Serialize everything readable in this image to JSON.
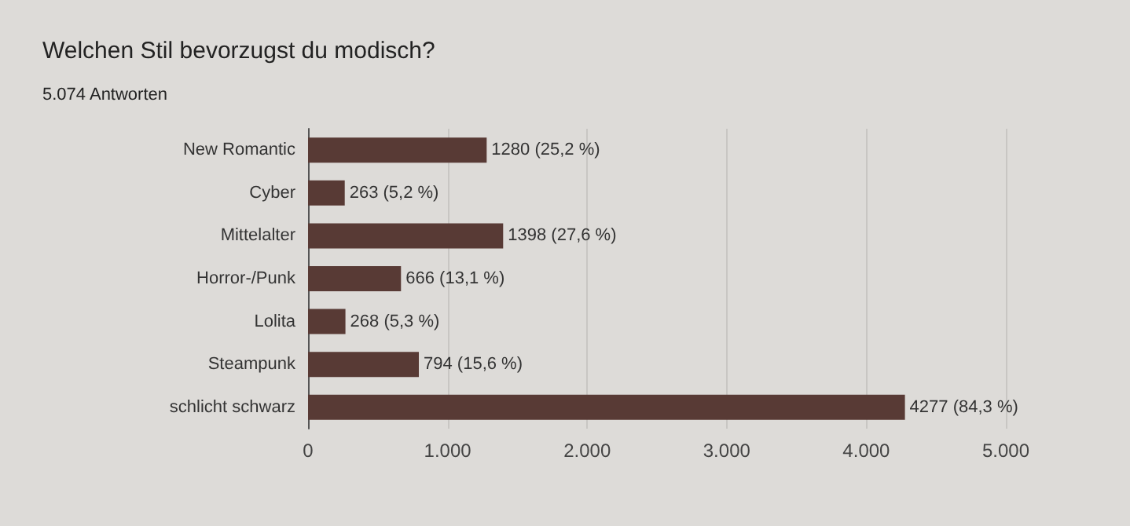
{
  "chart_data": {
    "type": "bar",
    "orientation": "horizontal",
    "title": "Welchen Stil bevorzugst du modisch?",
    "subtitle": "5.074 Antworten",
    "categories": [
      "New Romantic",
      "Cyber",
      "Mittelalter",
      "Horror-/Punk",
      "Lolita",
      "Steampunk",
      "schlicht schwarz"
    ],
    "values": [
      1280,
      263,
      1398,
      666,
      268,
      794,
      4277
    ],
    "value_labels": [
      "1280 (25,2 %)",
      "263 (5,2 %)",
      "1398 (27,6 %)",
      "666 (13,1 %)",
      "268 (5,3 %)",
      "794 (15,6 %)",
      "4277 (84,3 %)"
    ],
    "color": "#583a35",
    "xlim": [
      0,
      5000
    ],
    "xticks": [
      {
        "value": 0,
        "label": "0"
      },
      {
        "value": 1000,
        "label": "1.000"
      },
      {
        "value": 2000,
        "label": "2.000"
      },
      {
        "value": 3000,
        "label": "3.000"
      },
      {
        "value": 4000,
        "label": "4.000"
      },
      {
        "value": 5000,
        "label": "5.000"
      }
    ],
    "grid": "x"
  }
}
